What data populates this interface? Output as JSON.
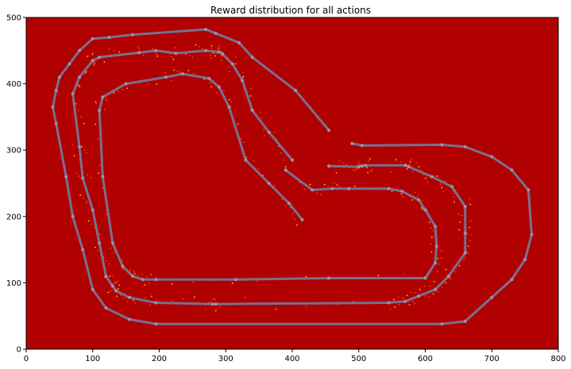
{
  "chart_data": {
    "type": "heatmap",
    "title": "Reward distribution for all actions",
    "xlabel": "",
    "ylabel": "",
    "xlim": [
      0,
      800
    ],
    "ylim": [
      0,
      500
    ],
    "xticks": [
      0,
      100,
      200,
      300,
      400,
      500,
      600,
      700,
      800
    ],
    "yticks": [
      0,
      100,
      200,
      300,
      400,
      500
    ],
    "grid": false,
    "background_color": "#b00000",
    "track_color": "#7a6f8f",
    "reward_point_color": "#ffd000",
    "series": [
      {
        "role": "track-outer",
        "x": [
          455,
          405,
          340,
          320,
          285,
          270,
          160,
          125,
          100,
          80,
          65,
          50,
          45,
          40,
          45,
          60,
          70,
          85,
          100,
          120,
          155,
          195,
          625,
          660,
          700,
          730,
          750,
          760,
          755,
          730,
          700,
          660,
          625,
          505,
          490
        ],
        "y": [
          330,
          390,
          440,
          462,
          476,
          482,
          474,
          470,
          468,
          450,
          430,
          410,
          390,
          365,
          340,
          260,
          200,
          150,
          90,
          62,
          45,
          38,
          38,
          42,
          78,
          105,
          135,
          173,
          240,
          270,
          290,
          305,
          308,
          307,
          310
        ]
      },
      {
        "role": "track-center",
        "x": [
          400,
          365,
          340,
          325,
          310,
          295,
          290,
          270,
          225,
          195,
          170,
          110,
          100,
          80,
          70,
          80,
          85,
          100,
          110,
          120,
          130,
          135,
          155,
          195,
          280,
          285,
          545,
          570,
          590,
          615,
          635,
          660,
          660,
          660,
          640,
          610,
          575,
          570,
          510,
          505,
          500,
          455
        ],
        "y": [
          285,
          327,
          360,
          405,
          430,
          445,
          448,
          450,
          446,
          450,
          447,
          440,
          435,
          410,
          385,
          305,
          258,
          210,
          160,
          110,
          95,
          88,
          78,
          70,
          68,
          68,
          70,
          72,
          80,
          90,
          110,
          145,
          175,
          215,
          245,
          260,
          275,
          277,
          277,
          276,
          275,
          276
        ]
      },
      {
        "role": "track-inner",
        "x": [
          415,
          395,
          365,
          330,
          305,
          290,
          275,
          235,
          210,
          150,
          115,
          110,
          115,
          130,
          145,
          160,
          175,
          195,
          315,
          455,
          600,
          615,
          617,
          615,
          600,
          590,
          565,
          545,
          485,
          460,
          430,
          390
        ],
        "y": [
          195,
          220,
          250,
          285,
          365,
          395,
          408,
          415,
          410,
          400,
          380,
          360,
          260,
          160,
          125,
          110,
          105,
          105,
          105,
          107,
          107,
          130,
          155,
          185,
          210,
          225,
          238,
          242,
          242,
          242,
          240,
          270
        ]
      }
    ]
  }
}
